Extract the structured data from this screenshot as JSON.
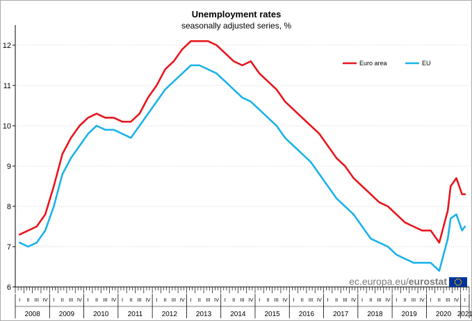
{
  "chart_data": {
    "type": "line",
    "title": "Unemployment rates",
    "subtitle": "seasonally adjusted series, %",
    "ylim": [
      6,
      12.5
    ],
    "yticks": [
      6,
      7,
      8,
      9,
      10,
      11,
      12
    ],
    "quarter_labels": [
      "I",
      "II",
      "III",
      "IV"
    ],
    "years": [
      "2008",
      "2009",
      "2010",
      "2011",
      "2012",
      "2013",
      "2014",
      "2015",
      "2016",
      "2017",
      "2018",
      "2019",
      "2020",
      "2021"
    ],
    "x_start": "2008-01",
    "x_end": "2021-01",
    "legend_position": "top-right",
    "series": [
      {
        "name": "Euro area",
        "color": "#e8141c",
        "points": [
          [
            "2008-01",
            7.3
          ],
          [
            "2008-04",
            7.4
          ],
          [
            "2008-07",
            7.5
          ],
          [
            "2008-10",
            7.8
          ],
          [
            "2009-01",
            8.5
          ],
          [
            "2009-04",
            9.3
          ],
          [
            "2009-07",
            9.7
          ],
          [
            "2009-10",
            10.0
          ],
          [
            "2010-01",
            10.2
          ],
          [
            "2010-04",
            10.3
          ],
          [
            "2010-07",
            10.2
          ],
          [
            "2010-10",
            10.2
          ],
          [
            "2011-01",
            10.1
          ],
          [
            "2011-04",
            10.1
          ],
          [
            "2011-07",
            10.3
          ],
          [
            "2011-10",
            10.7
          ],
          [
            "2012-01",
            11.0
          ],
          [
            "2012-04",
            11.4
          ],
          [
            "2012-07",
            11.6
          ],
          [
            "2012-10",
            11.9
          ],
          [
            "2013-01",
            12.1
          ],
          [
            "2013-04",
            12.1
          ],
          [
            "2013-07",
            12.1
          ],
          [
            "2013-10",
            12.0
          ],
          [
            "2014-01",
            11.8
          ],
          [
            "2014-04",
            11.6
          ],
          [
            "2014-07",
            11.5
          ],
          [
            "2014-10",
            11.6
          ],
          [
            "2015-01",
            11.3
          ],
          [
            "2015-04",
            11.1
          ],
          [
            "2015-07",
            10.9
          ],
          [
            "2015-10",
            10.6
          ],
          [
            "2016-01",
            10.4
          ],
          [
            "2016-04",
            10.2
          ],
          [
            "2016-07",
            10.0
          ],
          [
            "2016-10",
            9.8
          ],
          [
            "2017-01",
            9.5
          ],
          [
            "2017-04",
            9.2
          ],
          [
            "2017-07",
            9.0
          ],
          [
            "2017-10",
            8.7
          ],
          [
            "2018-01",
            8.5
          ],
          [
            "2018-04",
            8.3
          ],
          [
            "2018-07",
            8.1
          ],
          [
            "2018-10",
            8.0
          ],
          [
            "2019-01",
            7.8
          ],
          [
            "2019-04",
            7.6
          ],
          [
            "2019-07",
            7.5
          ],
          [
            "2019-10",
            7.4
          ],
          [
            "2020-01",
            7.4
          ],
          [
            "2020-04",
            7.1
          ],
          [
            "2020-07",
            7.9
          ],
          [
            "2020-08",
            8.5
          ],
          [
            "2020-10",
            8.7
          ],
          [
            "2020-12",
            8.3
          ],
          [
            "2021-01",
            8.3
          ]
        ]
      },
      {
        "name": "EU",
        "color": "#1ab2e8",
        "points": [
          [
            "2008-01",
            7.1
          ],
          [
            "2008-04",
            7.0
          ],
          [
            "2008-07",
            7.1
          ],
          [
            "2008-10",
            7.4
          ],
          [
            "2009-01",
            8.0
          ],
          [
            "2009-04",
            8.8
          ],
          [
            "2009-07",
            9.2
          ],
          [
            "2009-10",
            9.5
          ],
          [
            "2010-01",
            9.8
          ],
          [
            "2010-04",
            10.0
          ],
          [
            "2010-07",
            9.9
          ],
          [
            "2010-10",
            9.9
          ],
          [
            "2011-01",
            9.8
          ],
          [
            "2011-04",
            9.7
          ],
          [
            "2011-07",
            10.0
          ],
          [
            "2011-10",
            10.3
          ],
          [
            "2012-01",
            10.6
          ],
          [
            "2012-04",
            10.9
          ],
          [
            "2012-07",
            11.1
          ],
          [
            "2012-10",
            11.3
          ],
          [
            "2013-01",
            11.5
          ],
          [
            "2013-04",
            11.5
          ],
          [
            "2013-07",
            11.4
          ],
          [
            "2013-10",
            11.3
          ],
          [
            "2014-01",
            11.1
          ],
          [
            "2014-04",
            10.9
          ],
          [
            "2014-07",
            10.7
          ],
          [
            "2014-10",
            10.6
          ],
          [
            "2015-01",
            10.4
          ],
          [
            "2015-04",
            10.2
          ],
          [
            "2015-07",
            10.0
          ],
          [
            "2015-10",
            9.7
          ],
          [
            "2016-01",
            9.5
          ],
          [
            "2016-04",
            9.3
          ],
          [
            "2016-07",
            9.1
          ],
          [
            "2016-10",
            8.8
          ],
          [
            "2017-01",
            8.5
          ],
          [
            "2017-04",
            8.2
          ],
          [
            "2017-07",
            8.0
          ],
          [
            "2017-10",
            7.8
          ],
          [
            "2018-01",
            7.5
          ],
          [
            "2018-04",
            7.2
          ],
          [
            "2018-07",
            7.1
          ],
          [
            "2018-10",
            7.0
          ],
          [
            "2019-01",
            6.8
          ],
          [
            "2019-04",
            6.7
          ],
          [
            "2019-07",
            6.6
          ],
          [
            "2019-10",
            6.6
          ],
          [
            "2020-01",
            6.6
          ],
          [
            "2020-04",
            6.4
          ],
          [
            "2020-07",
            7.2
          ],
          [
            "2020-08",
            7.7
          ],
          [
            "2020-10",
            7.8
          ],
          [
            "2020-12",
            7.4
          ],
          [
            "2021-01",
            7.5
          ]
        ]
      }
    ]
  },
  "watermark": {
    "domain": "ec.europa.eu/",
    "brand": "eurostat"
  },
  "colors": {
    "flag_blue": "#003399",
    "flag_stars": "#ffcc00"
  }
}
